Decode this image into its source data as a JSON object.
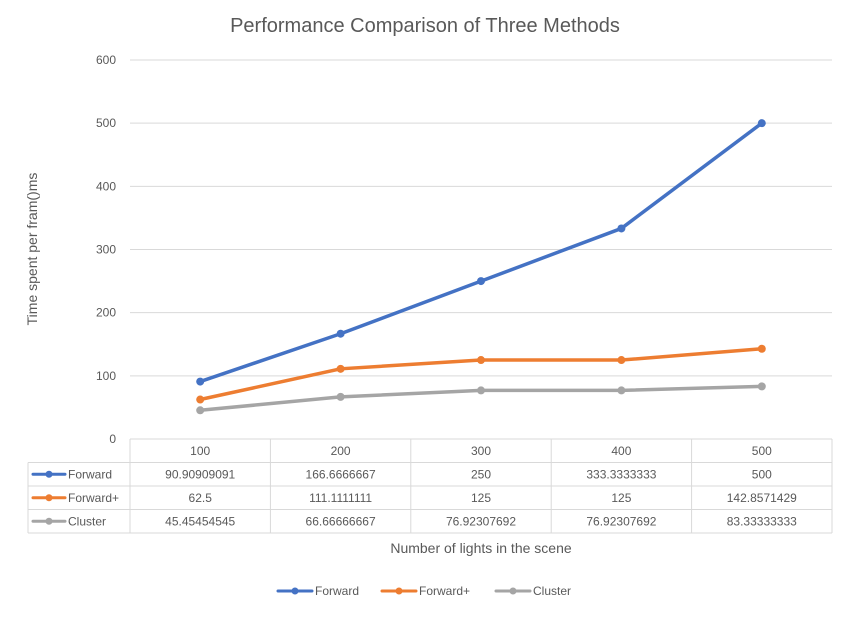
{
  "chart_data": {
    "type": "line",
    "title": "Performance Comparison of Three Methods",
    "xlabel": "Number of lights in the scene",
    "ylabel": "Time spent per fram()ms",
    "ylim": [
      0,
      600
    ],
    "yticks": [
      0,
      100,
      200,
      300,
      400,
      500,
      600
    ],
    "grid": true,
    "legend_position": "bottom",
    "categories": [
      "100",
      "200",
      "300",
      "400",
      "500"
    ],
    "series": [
      {
        "name": "Forward",
        "color": "#4472C4",
        "values": [
          90.90909091,
          166.6666667,
          250,
          333.3333333,
          500
        ],
        "labels": [
          "90.90909091",
          "166.6666667",
          "250",
          "333.3333333",
          "500"
        ]
      },
      {
        "name": "Forward+",
        "color": "#ED7D31",
        "values": [
          62.5,
          111.1111111,
          125,
          125,
          142.8571429
        ],
        "labels": [
          "62.5",
          "111.1111111",
          "125",
          "125",
          "142.8571429"
        ]
      },
      {
        "name": "Cluster",
        "color": "#A5A5A5",
        "values": [
          45.45454545,
          66.66666667,
          76.92307692,
          76.92307692,
          83.33333333
        ],
        "labels": [
          "45.45454545",
          "66.66666667",
          "76.92307692",
          "76.92307692",
          "83.33333333"
        ]
      }
    ]
  }
}
